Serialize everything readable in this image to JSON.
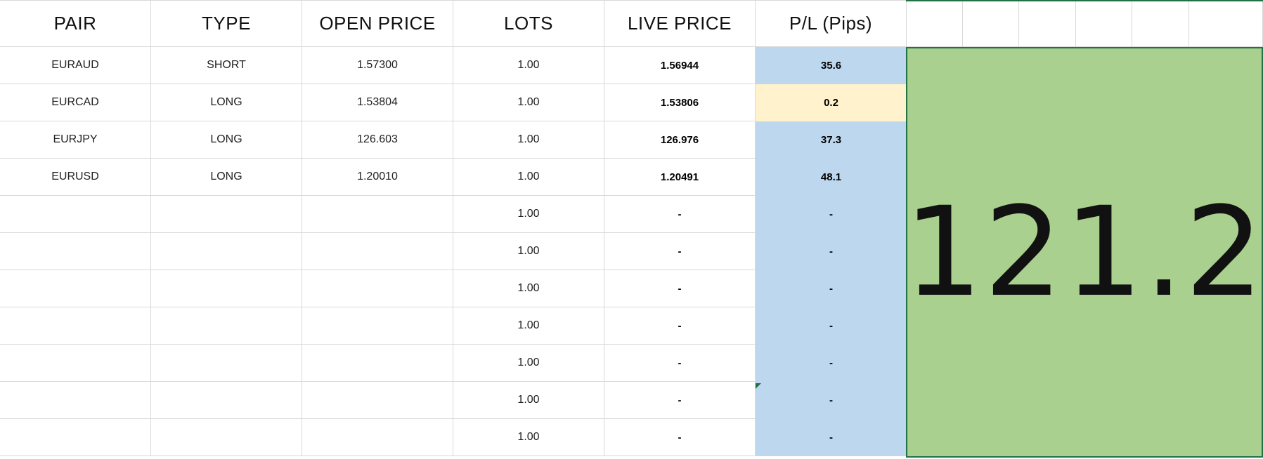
{
  "headers": [
    "PAIR",
    "TYPE",
    "OPEN PRICE",
    "LOTS",
    "LIVE PRICE",
    "P/L (Pips)"
  ],
  "rows": [
    {
      "pair": "EURAUD",
      "type": "SHORT",
      "open": "1.57300",
      "lots": "1.00",
      "live": "1.56944",
      "pl": "35.6",
      "pl_status": "positive"
    },
    {
      "pair": "EURCAD",
      "type": "LONG",
      "open": "1.53804",
      "lots": "1.00",
      "live": "1.53806",
      "pl": "0.2",
      "pl_status": "neutral"
    },
    {
      "pair": "EURJPY",
      "type": "LONG",
      "open": "126.603",
      "lots": "1.00",
      "live": "126.976",
      "pl": "37.3",
      "pl_status": "positive"
    },
    {
      "pair": "EURUSD",
      "type": "LONG",
      "open": "1.20010",
      "lots": "1.00",
      "live": "1.20491",
      "pl": "48.1",
      "pl_status": "positive"
    },
    {
      "pair": "",
      "type": "",
      "open": "",
      "lots": "1.00",
      "live": "-",
      "pl": "-",
      "pl_status": "positive"
    },
    {
      "pair": "",
      "type": "",
      "open": "",
      "lots": "1.00",
      "live": "-",
      "pl": "-",
      "pl_status": "positive"
    },
    {
      "pair": "",
      "type": "",
      "open": "",
      "lots": "1.00",
      "live": "-",
      "pl": "-",
      "pl_status": "positive"
    },
    {
      "pair": "",
      "type": "",
      "open": "",
      "lots": "1.00",
      "live": "-",
      "pl": "-",
      "pl_status": "positive"
    },
    {
      "pair": "",
      "type": "",
      "open": "",
      "lots": "1.00",
      "live": "-",
      "pl": "-",
      "pl_status": "positive"
    },
    {
      "pair": "",
      "type": "",
      "open": "",
      "lots": "1.00",
      "live": "-",
      "pl": "-",
      "pl_status": "positive"
    },
    {
      "pair": "",
      "type": "",
      "open": "",
      "lots": "1.00",
      "live": "-",
      "pl": "-",
      "pl_status": "positive"
    }
  ],
  "total_pips": "121.2",
  "colors": {
    "pl_positive": "#bdd7ee",
    "pl_neutral": "#fff2cc",
    "total_box": "#a9d08e",
    "selection_border": "#217346",
    "gridline": "#d9d9d9"
  }
}
